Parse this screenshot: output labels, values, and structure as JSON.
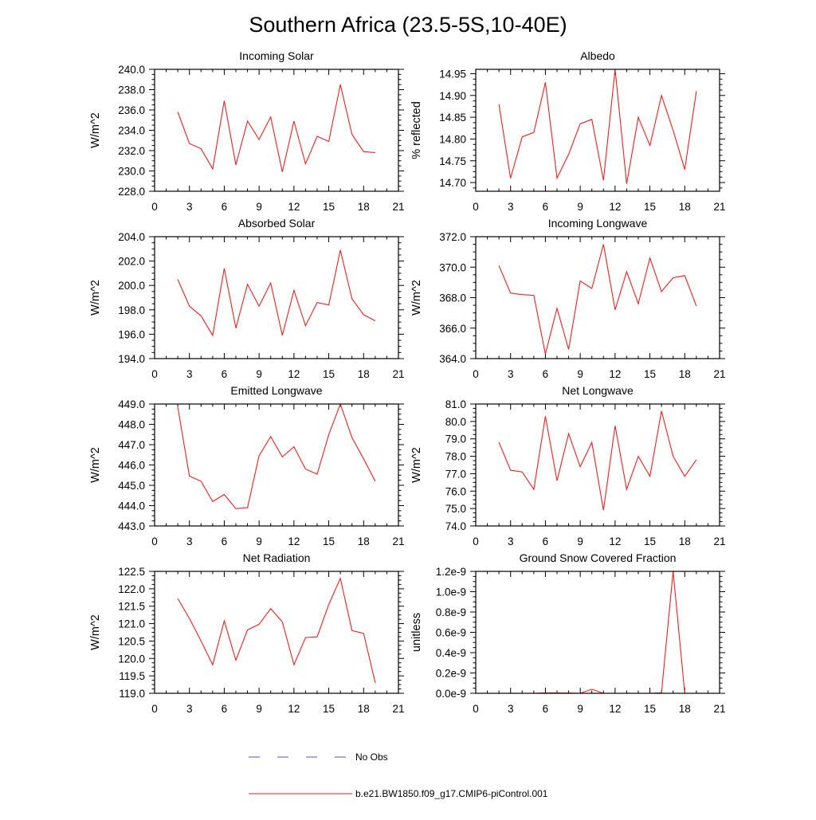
{
  "title": "Southern Africa (23.5-5S,10-40E)",
  "legend": {
    "obs_label": "No Obs",
    "obs_color": "#5050c8",
    "model_label": "b.e21.BW1850.f09_g17.CMIP6-piControl.001",
    "model_color": "#e8211f"
  },
  "chart_data": [
    {
      "type": "line",
      "title": "Incoming Solar",
      "ylabel": "W/m^2",
      "xlim": [
        0,
        21
      ],
      "x_ticks": [
        0,
        3,
        6,
        9,
        12,
        15,
        18,
        21
      ],
      "ylim": [
        228,
        240
      ],
      "y_ticks": [
        228,
        230,
        232,
        234,
        236,
        238,
        240
      ],
      "y_tick_labels": [
        "228.0",
        "230.0",
        "232.0",
        "234.0",
        "236.0",
        "238.0",
        "240.0"
      ],
      "series": [
        {
          "name": "b.e21.BW1850.f09_g17.CMIP6-piControl.001",
          "x": [
            2,
            3,
            4,
            5,
            6,
            7,
            8,
            9,
            10,
            11,
            12,
            13,
            14,
            15,
            16,
            17,
            18,
            19
          ],
          "values": [
            235.8,
            232.7,
            232.2,
            230.2,
            236.9,
            230.6,
            234.9,
            233.1,
            235.3,
            229.9,
            234.9,
            230.7,
            233.4,
            232.9,
            238.5,
            233.6,
            231.9,
            231.8
          ]
        }
      ]
    },
    {
      "type": "line",
      "title": "Albedo",
      "ylabel": "% reflected",
      "xlim": [
        0,
        21
      ],
      "x_ticks": [
        0,
        3,
        6,
        9,
        12,
        15,
        18,
        21
      ],
      "ylim": [
        14.68,
        14.96
      ],
      "y_ticks": [
        14.7,
        14.75,
        14.8,
        14.85,
        14.9,
        14.95
      ],
      "y_tick_labels": [
        "14.70",
        "14.75",
        "14.80",
        "14.85",
        "14.90",
        "14.95"
      ],
      "series": [
        {
          "name": "b.e21.BW1850.f09_g17.CMIP6-piControl.001",
          "x": [
            2,
            3,
            4,
            5,
            6,
            7,
            8,
            9,
            10,
            11,
            12,
            13,
            14,
            15,
            16,
            17,
            18,
            19
          ],
          "values": [
            14.88,
            14.71,
            14.805,
            14.815,
            14.93,
            14.71,
            14.765,
            14.835,
            14.845,
            14.705,
            14.96,
            14.697,
            14.85,
            14.785,
            14.9,
            14.82,
            14.73,
            14.91
          ]
        }
      ]
    },
    {
      "type": "line",
      "title": "Absorbed Solar",
      "ylabel": "W/m^2",
      "xlim": [
        0,
        21
      ],
      "x_ticks": [
        0,
        3,
        6,
        9,
        12,
        15,
        18,
        21
      ],
      "ylim": [
        194,
        204
      ],
      "y_ticks": [
        194,
        196,
        198,
        200,
        202,
        204
      ],
      "y_tick_labels": [
        "194.0",
        "196.0",
        "198.0",
        "200.0",
        "202.0",
        "204.0"
      ],
      "series": [
        {
          "name": "b.e21.BW1850.f09_g17.CMIP6-piControl.001",
          "x": [
            2,
            3,
            4,
            5,
            6,
            7,
            8,
            9,
            10,
            11,
            12,
            13,
            14,
            15,
            16,
            17,
            18,
            19
          ],
          "values": [
            200.5,
            198.3,
            197.5,
            195.9,
            201.4,
            196.5,
            200.1,
            198.3,
            200.2,
            195.9,
            199.6,
            196.7,
            198.6,
            198.4,
            202.9,
            198.9,
            197.6,
            197.1
          ]
        }
      ]
    },
    {
      "type": "line",
      "title": "Incoming Longwave",
      "ylabel": "W/m^2",
      "xlim": [
        0,
        21
      ],
      "x_ticks": [
        0,
        3,
        6,
        9,
        12,
        15,
        18,
        21
      ],
      "ylim": [
        364,
        372
      ],
      "y_ticks": [
        364,
        366,
        368,
        370,
        372
      ],
      "y_tick_labels": [
        "364.0",
        "366.0",
        "368.0",
        "370.0",
        "372.0"
      ],
      "series": [
        {
          "name": "b.e21.BW1850.f09_g17.CMIP6-piControl.001",
          "x": [
            2,
            3,
            4,
            5,
            6,
            7,
            8,
            9,
            10,
            11,
            12,
            13,
            14,
            15,
            16,
            17,
            18,
            19
          ],
          "values": [
            370.1,
            368.3,
            368.2,
            368.15,
            364.3,
            367.3,
            364.6,
            369.1,
            368.6,
            371.5,
            367.2,
            369.7,
            367.6,
            370.6,
            368.4,
            369.3,
            369.45,
            367.45
          ]
        }
      ]
    },
    {
      "type": "line",
      "title": "Emitted Longwave",
      "ylabel": "W/m^2",
      "xlim": [
        0,
        21
      ],
      "x_ticks": [
        0,
        3,
        6,
        9,
        12,
        15,
        18,
        21
      ],
      "ylim": [
        443,
        449
      ],
      "y_ticks": [
        443,
        444,
        445,
        446,
        447,
        448,
        449
      ],
      "y_tick_labels": [
        "443.0",
        "444.0",
        "445.0",
        "446.0",
        "447.0",
        "448.0",
        "449.0"
      ],
      "series": [
        {
          "name": "b.e21.BW1850.f09_g17.CMIP6-piControl.001",
          "x": [
            2,
            3,
            4,
            5,
            6,
            7,
            8,
            9,
            10,
            11,
            12,
            13,
            14,
            15,
            16,
            17,
            18,
            19
          ],
          "values": [
            448.85,
            445.45,
            445.2,
            444.2,
            444.55,
            443.85,
            443.9,
            446.45,
            447.4,
            446.4,
            446.9,
            445.8,
            445.55,
            447.5,
            449.0,
            447.35,
            446.3,
            445.2
          ]
        }
      ]
    },
    {
      "type": "line",
      "title": "Net Longwave",
      "ylabel": "W/m^2",
      "xlim": [
        0,
        21
      ],
      "x_ticks": [
        0,
        3,
        6,
        9,
        12,
        15,
        18,
        21
      ],
      "ylim": [
        74,
        81
      ],
      "y_ticks": [
        74,
        75,
        76,
        77,
        78,
        79,
        80,
        81
      ],
      "y_tick_labels": [
        "74.0",
        "75.0",
        "76.0",
        "77.0",
        "78.0",
        "79.0",
        "80.0",
        "81.0"
      ],
      "series": [
        {
          "name": "b.e21.BW1850.f09_g17.CMIP6-piControl.001",
          "x": [
            2,
            3,
            4,
            5,
            6,
            7,
            8,
            9,
            10,
            11,
            12,
            13,
            14,
            15,
            16,
            17,
            18,
            19
          ],
          "values": [
            78.8,
            77.2,
            77.1,
            76.1,
            80.3,
            76.6,
            79.3,
            77.4,
            78.8,
            74.9,
            79.75,
            76.1,
            78.0,
            76.85,
            80.6,
            78.0,
            76.85,
            77.8
          ]
        }
      ]
    },
    {
      "type": "line",
      "title": "Net Radiation",
      "ylabel": "W/m^2",
      "xlim": [
        0,
        21
      ],
      "x_ticks": [
        0,
        3,
        6,
        9,
        12,
        15,
        18,
        21
      ],
      "ylim": [
        119,
        122.5
      ],
      "y_ticks": [
        119,
        119.5,
        120,
        120.5,
        121,
        121.5,
        122,
        122.5
      ],
      "y_tick_labels": [
        "119.0",
        "119.5",
        "120.0",
        "120.5",
        "121.0",
        "121.5",
        "122.0",
        "122.5"
      ],
      "series": [
        {
          "name": "b.e21.BW1850.f09_g17.CMIP6-piControl.001",
          "x": [
            2,
            3,
            4,
            5,
            6,
            7,
            8,
            9,
            10,
            11,
            12,
            13,
            14,
            15,
            16,
            17,
            18,
            19
          ],
          "values": [
            121.72,
            121.15,
            120.5,
            119.82,
            121.08,
            119.95,
            120.82,
            120.98,
            121.43,
            121.05,
            119.82,
            120.6,
            120.62,
            121.55,
            122.3,
            120.8,
            120.72,
            119.3
          ]
        }
      ]
    },
    {
      "type": "line",
      "title": "Ground Snow Covered Fraction",
      "ylabel": "unitless",
      "xlim": [
        0,
        21
      ],
      "x_ticks": [
        0,
        3,
        6,
        9,
        12,
        15,
        18,
        21
      ],
      "ylim": [
        0,
        1.2
      ],
      "y_ticks": [
        0,
        0.2,
        0.4,
        0.6,
        0.8,
        1.0,
        1.2
      ],
      "y_tick_labels": [
        "0.0e-9",
        "0.2e-9",
        "0.4e-9",
        "0.6e-9",
        "0.8e-9",
        "1.0e-9",
        "1.2e-9"
      ],
      "series": [
        {
          "name": "b.e21.BW1850.f09_g17.CMIP6-piControl.001",
          "x": [
            2,
            3,
            4,
            5,
            6,
            7,
            8,
            9,
            10,
            11,
            12,
            13,
            14,
            15,
            16,
            17,
            18,
            19
          ],
          "values": [
            0,
            0,
            0,
            0,
            0.005,
            0.003,
            0.002,
            0,
            0.04,
            0,
            0,
            0,
            0,
            0,
            0.005,
            1.2,
            0,
            0
          ]
        }
      ]
    }
  ]
}
